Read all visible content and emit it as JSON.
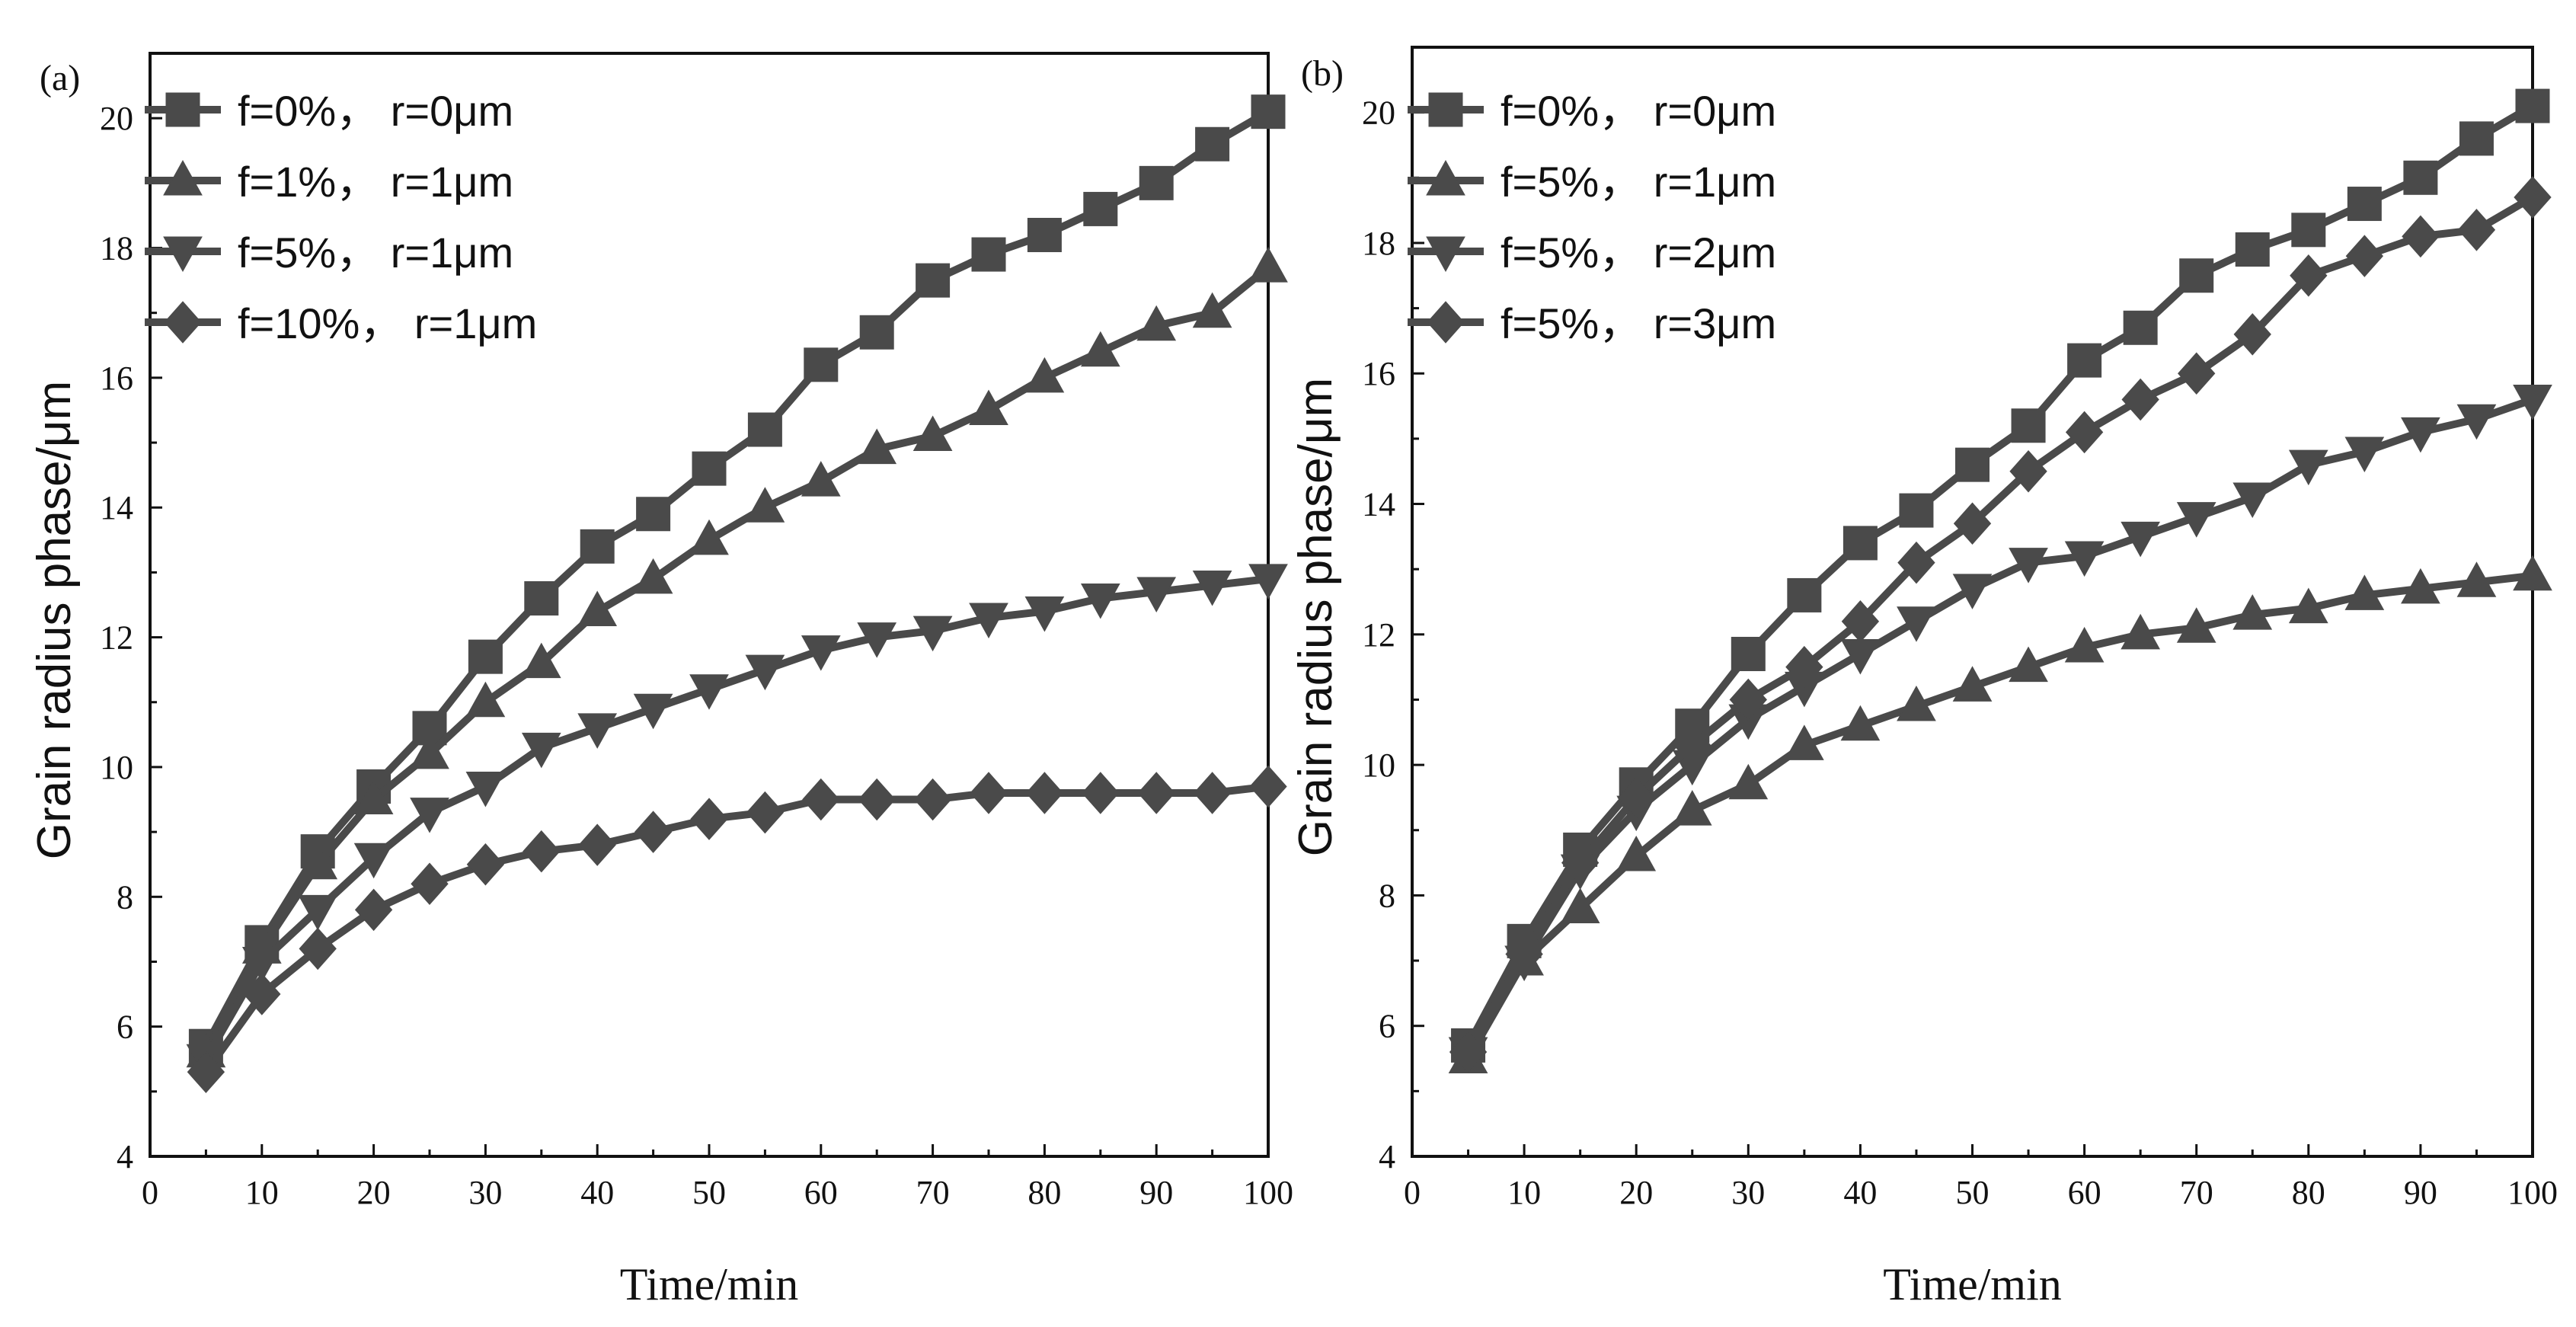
{
  "chart_data": [
    {
      "type": "line",
      "panel_label": "(a)",
      "xlabel": "Time/min",
      "ylabel": "Grain radius phase/μm",
      "xlim": [
        0,
        100
      ],
      "ylim": [
        4,
        21
      ],
      "xticks": [
        0,
        10,
        20,
        30,
        40,
        50,
        60,
        70,
        80,
        90,
        100
      ],
      "yticks": [
        4,
        6,
        8,
        10,
        12,
        14,
        16,
        18,
        20
      ],
      "legend_position": "top-left",
      "x": [
        5,
        10,
        15,
        20,
        25,
        30,
        35,
        40,
        45,
        50,
        55,
        60,
        65,
        70,
        75,
        80,
        85,
        90,
        95,
        100
      ],
      "series": [
        {
          "name": "f=0%，  r=0μm",
          "marker": "square",
          "values": [
            5.7,
            7.3,
            8.7,
            9.7,
            10.6,
            11.7,
            12.6,
            13.4,
            13.9,
            14.6,
            15.2,
            16.2,
            16.7,
            17.5,
            17.9,
            18.2,
            18.6,
            19.0,
            19.6,
            20.1
          ]
        },
        {
          "name": "f=1%，  r=1μm",
          "marker": "triangle-up",
          "values": [
            5.6,
            7.2,
            8.5,
            9.5,
            10.2,
            11.0,
            11.6,
            12.4,
            12.9,
            13.5,
            14.0,
            14.4,
            14.9,
            15.1,
            15.5,
            16.0,
            16.4,
            16.8,
            17.0,
            17.7
          ]
        },
        {
          "name": "f=5%，  r=1μm",
          "marker": "triangle-down",
          "values": [
            5.5,
            7.0,
            7.8,
            8.6,
            9.3,
            9.7,
            10.3,
            10.6,
            10.9,
            11.2,
            11.5,
            11.8,
            12.0,
            12.1,
            12.3,
            12.4,
            12.6,
            12.7,
            12.8,
            12.9
          ]
        },
        {
          "name": "f=10%，  r=1μm",
          "marker": "diamond",
          "values": [
            5.3,
            6.5,
            7.2,
            7.8,
            8.2,
            8.5,
            8.7,
            8.8,
            9.0,
            9.2,
            9.3,
            9.5,
            9.5,
            9.5,
            9.6,
            9.6,
            9.6,
            9.6,
            9.6,
            9.7
          ]
        }
      ]
    },
    {
      "type": "line",
      "panel_label": "(b)",
      "xlabel": "Time/min",
      "ylabel": "Grain radius phase/μm",
      "xlim": [
        0,
        100
      ],
      "ylim": [
        4,
        21
      ],
      "xticks": [
        0,
        10,
        20,
        30,
        40,
        50,
        60,
        70,
        80,
        90,
        100
      ],
      "yticks": [
        4,
        6,
        8,
        10,
        12,
        14,
        16,
        18,
        20
      ],
      "legend_position": "top-left",
      "x": [
        5,
        10,
        15,
        20,
        25,
        30,
        35,
        40,
        45,
        50,
        55,
        60,
        65,
        70,
        75,
        80,
        85,
        90,
        95,
        100
      ],
      "series": [
        {
          "name": "f=0%，  r=0μm",
          "marker": "square",
          "values": [
            5.7,
            7.3,
            8.7,
            9.7,
            10.6,
            11.7,
            12.6,
            13.4,
            13.9,
            14.6,
            15.2,
            16.2,
            16.7,
            17.5,
            17.9,
            18.2,
            18.6,
            19.0,
            19.6,
            20.1
          ]
        },
        {
          "name": "f=5%，  r=1μm",
          "marker": "triangle-up",
          "values": [
            5.5,
            7.0,
            7.8,
            8.6,
            9.3,
            9.7,
            10.3,
            10.6,
            10.9,
            11.2,
            11.5,
            11.8,
            12.0,
            12.1,
            12.3,
            12.4,
            12.6,
            12.7,
            12.8,
            12.9
          ]
        },
        {
          "name": "f=5%，  r=2μm",
          "marker": "triangle-down",
          "values": [
            5.6,
            7.0,
            8.4,
            9.3,
            10.0,
            10.7,
            11.2,
            11.7,
            12.2,
            12.7,
            13.1,
            13.2,
            13.5,
            13.8,
            14.1,
            14.6,
            14.8,
            15.1,
            15.3,
            15.6
          ]
        },
        {
          "name": "f=5%，  r=3μm",
          "marker": "diamond",
          "values": [
            5.6,
            7.1,
            8.5,
            9.5,
            10.3,
            11.0,
            11.5,
            12.2,
            13.1,
            13.7,
            14.5,
            15.1,
            15.6,
            16.0,
            16.6,
            17.5,
            17.8,
            18.1,
            18.2,
            18.7
          ]
        }
      ]
    }
  ]
}
